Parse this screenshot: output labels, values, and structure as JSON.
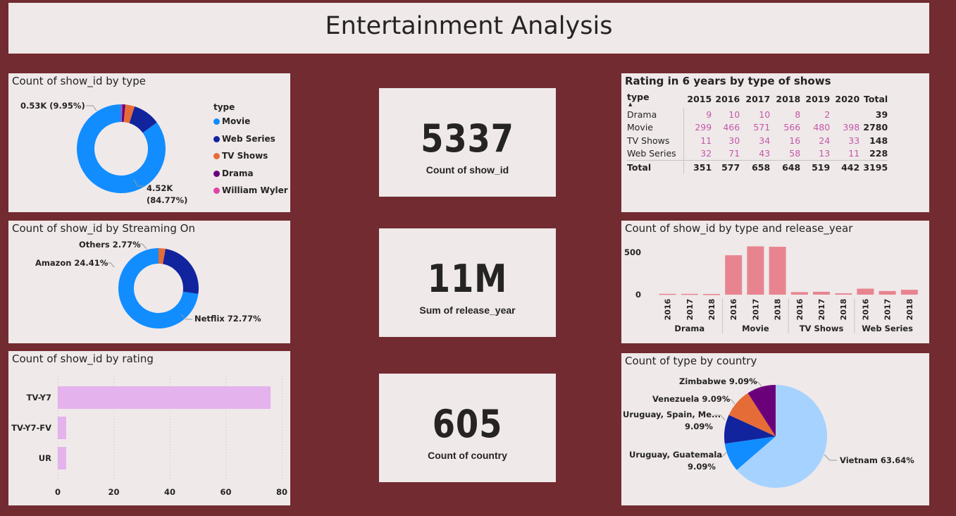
{
  "header": {
    "title": "Entertainment Analysis"
  },
  "type_donut": {
    "title": "Count of show_id by type",
    "legend_title": "type",
    "label_small": "0.53K (9.95%)",
    "label_big_1": "4.52K",
    "label_big_2": "(84.77%)",
    "legend": [
      {
        "label": "Movie",
        "color": "#118dff"
      },
      {
        "label": "Web Series",
        "color": "#12239e"
      },
      {
        "label": "TV Shows",
        "color": "#e66c37"
      },
      {
        "label": "Drama",
        "color": "#6b007b"
      },
      {
        "label": "William Wyler",
        "color": "#e044a7"
      }
    ]
  },
  "streaming_donut": {
    "title": "Count of show_id by Streaming On",
    "label_others": "Others 2.77%",
    "label_amazon": "Amazon 24.41%",
    "label_netflix": "Netflix 72.77%"
  },
  "rating_bar": {
    "title": "Count of show_id by rating",
    "bar_color": "#e4b2ec"
  },
  "cards": [
    {
      "value": "5337",
      "label": "Count of show_id"
    },
    {
      "value": "11M",
      "label": "Sum of release_year"
    },
    {
      "value": "605",
      "label": "Count of country"
    }
  ],
  "matrix": {
    "title": "Rating in 6 years by type of shows",
    "headers": [
      "type",
      "2015",
      "2016",
      "2017",
      "2018",
      "2019",
      "2020",
      "Total"
    ],
    "rows": [
      {
        "type": "Drama",
        "values": [
          "9",
          "10",
          "10",
          "8",
          "2",
          ""
        ],
        "total": "39"
      },
      {
        "type": "Movie",
        "values": [
          "299",
          "466",
          "571",
          "566",
          "480",
          "398"
        ],
        "total": "2780"
      },
      {
        "type": "TV Shows",
        "values": [
          "11",
          "30",
          "34",
          "16",
          "24",
          "33"
        ],
        "total": "148"
      },
      {
        "type": "Web Series",
        "values": [
          "32",
          "71",
          "43",
          "58",
          "13",
          "11"
        ],
        "total": "228"
      }
    ],
    "totals": {
      "label": "Total",
      "values": [
        "351",
        "577",
        "658",
        "648",
        "519",
        "442"
      ],
      "total": "3195"
    }
  },
  "type_year_bar": {
    "title": "Count of show_id by type and release_year",
    "bar_color": "#e8848f"
  },
  "country_pie": {
    "title": "Count of type by country",
    "labels": {
      "zimbabwe": "Zimbabwe 9.09%",
      "venezuela": "Venezuela 9.09%",
      "uruguay_spain_1": "Uruguay, Spain, Me...",
      "uruguay_spain_2": "9.09%",
      "uruguay_guat_1": "Uruguay, Guatemala",
      "uruguay_guat_2": "9.09%",
      "vietnam": "Vietnam 63.64%"
    }
  },
  "chart_data": [
    {
      "type": "pie",
      "title": "Count of show_id by type",
      "categories": [
        "Movie",
        "Web Series",
        "TV Shows",
        "Drama",
        "William Wyler"
      ],
      "values": [
        4.52,
        0.53,
        0.18,
        0.06,
        0.02
      ],
      "value_unit": "K",
      "donut": true,
      "legend": "right"
    },
    {
      "type": "pie",
      "title": "Count of show_id by Streaming On",
      "categories": [
        "Netflix",
        "Amazon",
        "Others"
      ],
      "values": [
        72.77,
        24.41,
        2.77
      ],
      "value_unit": "%",
      "donut": true
    },
    {
      "type": "bar",
      "orientation": "horizontal",
      "title": "Count of show_id by rating",
      "categories": [
        "TV-Y7",
        "TV-Y7-FV",
        "UR"
      ],
      "values": [
        76,
        3,
        3
      ],
      "xlim": [
        0,
        80
      ],
      "xticks": [
        0,
        20,
        40,
        60,
        80
      ],
      "grid": true
    },
    {
      "type": "bar",
      "title": "Count of show_id by type and release_year",
      "groups": [
        "Drama",
        "Movie",
        "TV Shows",
        "Web Series"
      ],
      "categories": [
        "2016",
        "2017",
        "2018"
      ],
      "series": [
        {
          "name": "Drama",
          "values": [
            10,
            10,
            8
          ]
        },
        {
          "name": "Movie",
          "values": [
            466,
            571,
            566
          ]
        },
        {
          "name": "TV Shows",
          "values": [
            30,
            34,
            16
          ]
        },
        {
          "name": "Web Series",
          "values": [
            71,
            43,
            58
          ]
        }
      ],
      "ylim": [
        0,
        600
      ],
      "yticks": [
        0,
        500
      ]
    },
    {
      "type": "pie",
      "title": "Count of type by country",
      "categories": [
        "Vietnam",
        "Uruguay, Guatemala",
        "Uruguay, Spain, Me...",
        "Venezuela",
        "Zimbabwe"
      ],
      "values": [
        63.64,
        9.09,
        9.09,
        9.09,
        9.09
      ],
      "value_unit": "%",
      "colors": [
        "#a6d2ff",
        "#118dff",
        "#12239e",
        "#e66c37",
        "#6b007b"
      ]
    }
  ]
}
